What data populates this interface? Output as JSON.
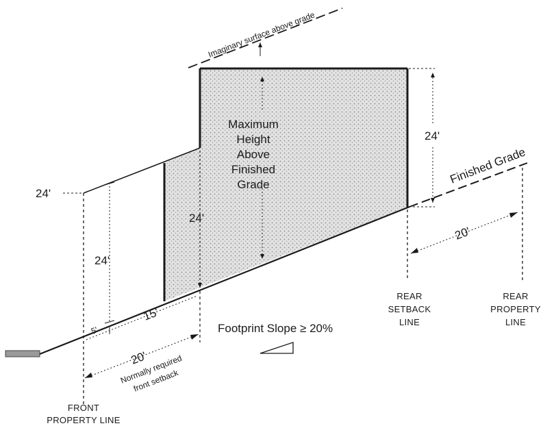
{
  "labels": {
    "imaginary_surface": "Imaginary surface above grade",
    "max_height": [
      "Maximum",
      "Height",
      "Above",
      "Finished",
      "Grade"
    ],
    "finished_grade": "Finished Grade",
    "dim_24_left_tick": "24'",
    "dim_24_left_vertical": "24'",
    "dim_24_center": "24'",
    "dim_24_right": "24'",
    "dim_20_rear": "20'",
    "dim_5": "5'",
    "dim_15": "15'",
    "dim_20_front": "20'",
    "normally_required": [
      "Normally required",
      "front setback"
    ],
    "footprint_slope": "Footprint Slope ≥ 20%",
    "rear_setback_line": [
      "REAR",
      "SETBACK",
      "LINE"
    ],
    "rear_property_line": [
      "REAR",
      "PROPERTY",
      "LINE"
    ],
    "front_property_line": [
      "FRONT",
      "PROPERTY LINE"
    ]
  },
  "colors": {
    "line": "#1a1a1a",
    "fill": "#d9d9d9"
  }
}
